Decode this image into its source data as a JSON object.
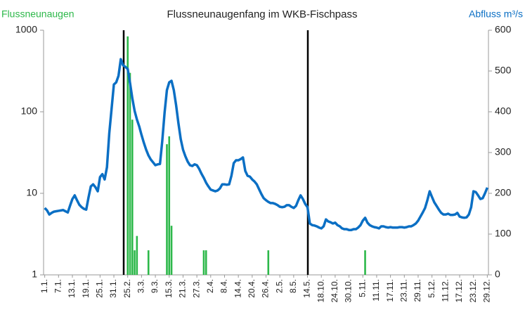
{
  "chart_data": {
    "type": "bar+line",
    "title": "Flussneunaugenfang im WKB-Fischpass",
    "categories": [
      "1.1.",
      null,
      null,
      null,
      null,
      null,
      "7.1.",
      null,
      null,
      null,
      null,
      null,
      "13.1.",
      null,
      null,
      null,
      null,
      null,
      "19.1.",
      null,
      null,
      null,
      null,
      null,
      "25.1.",
      null,
      null,
      null,
      null,
      null,
      "31.1.",
      null,
      null,
      null,
      null,
      null,
      "25.2.",
      null,
      null,
      null,
      null,
      null,
      "3.3.",
      null,
      null,
      null,
      null,
      null,
      "9.3.",
      null,
      null,
      null,
      null,
      null,
      "15.3.",
      null,
      null,
      null,
      null,
      null,
      "21.3.",
      null,
      null,
      null,
      null,
      null,
      "27.3.",
      null,
      null,
      null,
      null,
      null,
      "2.4.",
      null,
      null,
      null,
      null,
      null,
      "8.4.",
      null,
      null,
      null,
      null,
      null,
      "14.4.",
      null,
      null,
      null,
      null,
      null,
      "20.4.",
      null,
      null,
      null,
      null,
      null,
      "26.4.",
      null,
      null,
      null,
      null,
      null,
      "2.5.",
      null,
      null,
      null,
      null,
      null,
      "8.5.",
      null,
      null,
      null,
      null,
      null,
      "14.5.",
      null,
      null,
      null,
      null,
      null,
      "18.10.",
      null,
      null,
      null,
      null,
      null,
      "24.10.",
      null,
      null,
      null,
      null,
      null,
      "30.10.",
      null,
      null,
      null,
      null,
      null,
      "5.11.",
      null,
      null,
      null,
      null,
      null,
      "11.11.",
      null,
      null,
      null,
      null,
      null,
      "17.11.",
      null,
      null,
      null,
      null,
      null,
      "23.11.",
      null,
      null,
      null,
      null,
      null,
      "29.11.",
      null,
      null,
      null,
      null,
      null,
      "5.12.",
      null,
      null,
      null,
      null,
      null,
      "11.12.",
      null,
      null,
      null,
      null,
      null,
      "17.12.",
      null,
      null,
      null,
      null,
      null,
      "23.12.",
      null,
      null,
      null,
      null,
      null,
      "29.12."
    ],
    "series": [
      {
        "name": "Flussneunaugen",
        "color": "#2db84a",
        "type": "bar",
        "values": [
          null,
          null,
          null,
          null,
          null,
          null,
          null,
          null,
          null,
          null,
          null,
          null,
          null,
          null,
          null,
          null,
          null,
          null,
          null,
          null,
          null,
          null,
          null,
          null,
          null,
          null,
          null,
          null,
          null,
          null,
          null,
          null,
          null,
          null,
          null,
          null,
          840,
          300,
          80,
          2,
          3,
          null,
          null,
          null,
          null,
          2,
          null,
          null,
          null,
          null,
          null,
          null,
          null,
          40,
          50,
          4,
          null,
          null,
          null,
          null,
          null,
          null,
          null,
          null,
          null,
          null,
          null,
          null,
          null,
          2,
          2,
          null,
          null,
          null,
          null,
          null,
          null,
          null,
          null,
          null,
          null,
          null,
          null,
          null,
          null,
          null,
          null,
          null,
          null,
          null,
          null,
          null,
          null,
          null,
          null,
          null,
          null,
          2,
          null,
          null,
          null,
          null,
          null,
          null,
          null,
          null,
          null,
          null,
          null,
          null,
          null,
          null,
          null,
          null,
          null,
          null,
          null,
          null,
          null,
          null,
          null,
          null,
          null,
          null,
          null,
          null,
          null,
          null,
          null,
          null,
          null,
          null,
          null,
          null,
          null,
          null,
          null,
          null,
          null,
          2,
          null,
          null,
          null,
          null,
          null,
          null,
          null,
          null,
          null,
          null,
          null,
          null,
          null,
          null,
          null,
          null,
          null,
          null,
          null,
          null,
          null,
          null,
          null,
          null,
          null,
          null,
          null,
          null,
          null,
          null,
          null,
          null,
          null,
          null,
          null,
          null,
          null,
          null,
          null,
          null,
          null,
          null,
          null,
          null,
          null,
          null,
          null,
          null,
          null,
          null,
          null,
          null,
          null
        ]
      },
      {
        "name": "Abfluss m³/s",
        "color": "#0b6fc4",
        "type": "line",
        "axis": "y2",
        "values": [
          164,
          158,
          148,
          152,
          155,
          156,
          157,
          158,
          159,
          156,
          153,
          170,
          186,
          195,
          183,
          172,
          166,
          162,
          160,
          190,
          217,
          222,
          215,
          205,
          240,
          247,
          234,
          264,
          347,
          407,
          467,
          472,
          488,
          529,
          514,
          510,
          505,
          471,
          433,
          402,
          381,
          364,
          343,
          324,
          307,
          293,
          283,
          276,
          269,
          271,
          272,
          329,
          398,
          453,
          472,
          476,
          453,
          416,
          372,
          333,
          307,
          291,
          278,
          269,
          267,
          271,
          269,
          260,
          248,
          238,
          226,
          217,
          209,
          207,
          205,
          207,
          212,
          222,
          222,
          221,
          222,
          243,
          274,
          281,
          281,
          284,
          288,
          255,
          243,
          241,
          234,
          229,
          222,
          210,
          198,
          188,
          183,
          179,
          176,
          176,
          174,
          171,
          167,
          166,
          167,
          171,
          171,
          167,
          164,
          169,
          183,
          195,
          186,
          174,
          166,
          126,
          122,
          121,
          119,
          116,
          114,
          119,
          136,
          131,
          129,
          126,
          128,
          122,
          119,
          114,
          112,
          112,
          110,
          110,
          112,
          112,
          116,
          122,
          133,
          140,
          128,
          122,
          119,
          117,
          116,
          114,
          119,
          119,
          117,
          116,
          117,
          116,
          116,
          116,
          117,
          117,
          116,
          117,
          119,
          119,
          122,
          126,
          133,
          143,
          153,
          164,
          183,
          205,
          191,
          178,
          169,
          160,
          152,
          148,
          148,
          150,
          147,
          147,
          148,
          152,
          143,
          141,
          140,
          141,
          148,
          166,
          205,
          203,
          195,
          186,
          188,
          200,
          214
        ]
      }
    ],
    "ylim": [
      1,
      1000
    ],
    "yticks": [
      1,
      10,
      100,
      1000
    ],
    "ylog": true,
    "y2lim": [
      0,
      600
    ],
    "y2ticks": [
      0,
      100,
      200,
      300,
      400,
      500,
      600
    ]
  }
}
